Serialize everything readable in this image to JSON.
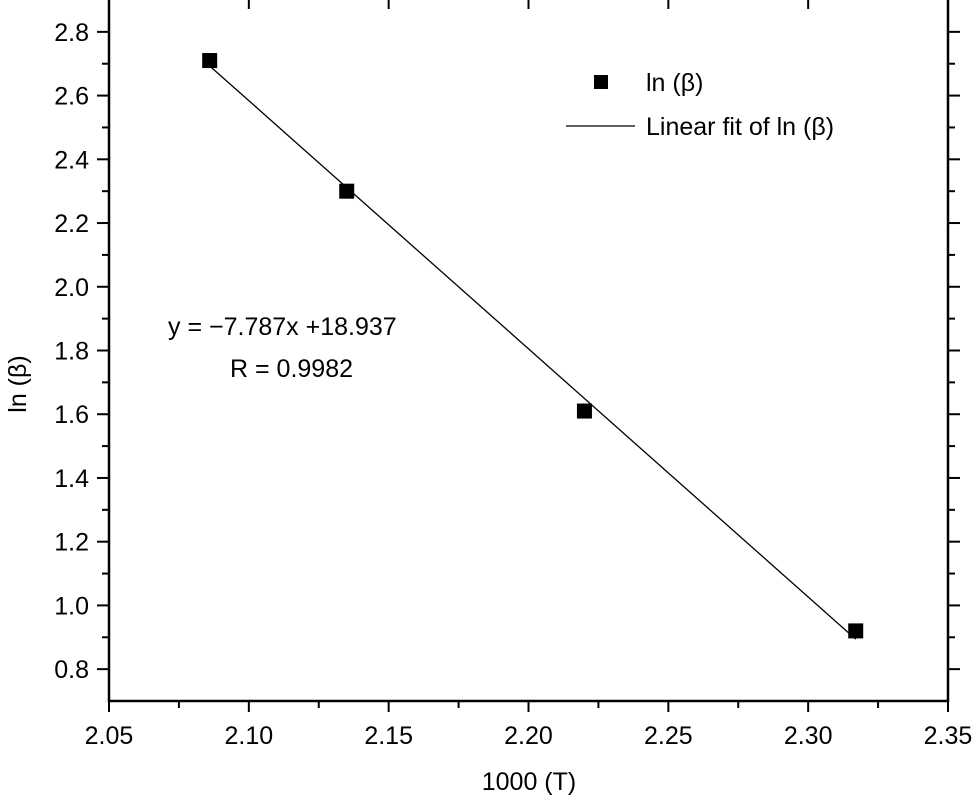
{
  "chart_data": {
    "type": "scatter",
    "title": "",
    "xlabel": "1000 (T)",
    "ylabel": "ln (β)",
    "xlim": [
      2.05,
      2.35
    ],
    "ylim": [
      0.7,
      2.9
    ],
    "x_ticks": [
      "2.05",
      "2.10",
      "2.15",
      "2.20",
      "2.25",
      "2.30",
      "2.35"
    ],
    "y_ticks": [
      "0.8",
      "1.0",
      "1.2",
      "1.4",
      "1.6",
      "1.8",
      "2.0",
      "2.2",
      "2.4",
      "2.6",
      "2.8"
    ],
    "grid": false,
    "legend_position": "upper right",
    "series": [
      {
        "name": "ln (β)",
        "marker": "square",
        "color": "#000000",
        "x": [
          2.086,
          2.135,
          2.22,
          2.317
        ],
        "y": [
          2.71,
          2.3,
          1.61,
          0.92
        ]
      },
      {
        "name": "Linear fit of ln (β)",
        "type": "line",
        "color": "#000000",
        "slope": -7.787,
        "intercept": 18.937,
        "x": [
          2.086,
          2.317
        ],
        "y": [
          2.693,
          0.894
        ]
      }
    ],
    "annotations": [
      "y = −7.787x +18.937",
      "R = 0.9982"
    ]
  },
  "legend": {
    "items": [
      {
        "label": "ln (β)"
      },
      {
        "label": "Linear fit of ln (β)"
      }
    ]
  },
  "annotation": {
    "equation": "y = −7.787x +18.937",
    "r_value": "R = 0.9982"
  }
}
